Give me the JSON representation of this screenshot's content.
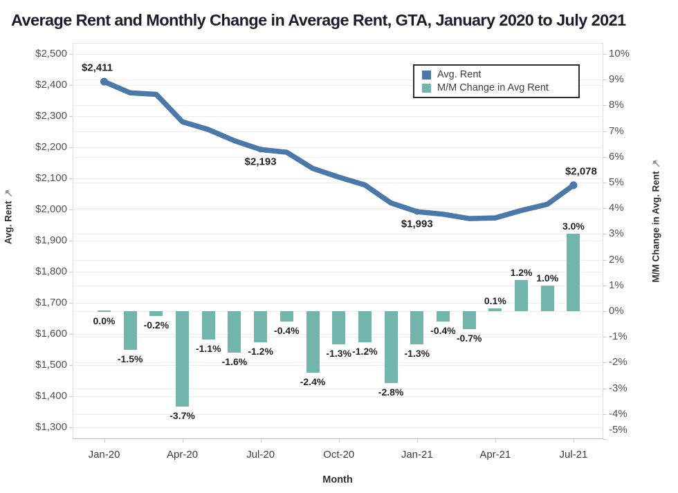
{
  "title": "Average Rent and Monthly Change in Average Rent, GTA, January 2020 to July 2021",
  "legend": {
    "items": [
      {
        "label": "Avg. Rent",
        "color": "#4a78a8"
      },
      {
        "label": "M/M Change in Avg Rent",
        "color": "#72b5ac"
      }
    ]
  },
  "colors": {
    "line": "#4a78a8",
    "bar": "#72b5ac",
    "gridline": "#ededed"
  },
  "chart_data": {
    "type": "line+bar dual-axis",
    "x": [
      "Jan-20",
      "Feb-20",
      "Mar-20",
      "Apr-20",
      "May-20",
      "Jun-20",
      "Jul-20",
      "Aug-20",
      "Sep-20",
      "Oct-20",
      "Nov-20",
      "Dec-20",
      "Jan-21",
      "Feb-21",
      "Mar-21",
      "Apr-21",
      "May-21",
      "Jun-21",
      "Jul-21"
    ],
    "series": [
      {
        "name": "Avg. Rent",
        "type": "line",
        "axis": "left",
        "color": "#4a78a8",
        "values": [
          2411,
          2375,
          2370,
          2282,
          2257,
          2221,
          2193,
          2184,
          2132,
          2104,
          2079,
          2021,
          1993,
          1985,
          1971,
          1973,
          1997,
          2017,
          2078
        ],
        "point_labels": [
          {
            "index": 0,
            "text": "$2,411",
            "position": "above"
          },
          {
            "index": 6,
            "text": "$2,193",
            "position": "below"
          },
          {
            "index": 12,
            "text": "$1,993",
            "position": "below"
          },
          {
            "index": 18,
            "text": "$2,078",
            "position": "above"
          }
        ]
      },
      {
        "name": "M/M Change in Avg Rent",
        "type": "bar",
        "axis": "right",
        "color": "#72b5ac",
        "values": [
          0.0,
          -1.5,
          -0.2,
          -3.7,
          -1.1,
          -1.6,
          -1.2,
          -0.4,
          -2.4,
          -1.3,
          -1.2,
          -2.8,
          -1.3,
          -0.4,
          -0.7,
          0.1,
          1.2,
          1.0,
          3.0
        ],
        "bar_labels": [
          "0.0%",
          "-1.5%",
          "-0.2%",
          "-3.7%",
          "-1.1%",
          "-1.6%",
          "-1.2%",
          "-0.4%",
          "-2.4%",
          "-1.3%",
          "-1.2%",
          "-2.8%",
          "-1.3%",
          "-0.4%",
          "-0.7%",
          "0.1%",
          "1.2%",
          "1.0%",
          "3.0%"
        ]
      }
    ],
    "left_axis": {
      "title": "Avg. Rent",
      "min": 1300,
      "max": 2500,
      "step": 100,
      "tick_labels": [
        "$2,500",
        "$2,400",
        "$2,300",
        "$2,200",
        "$2,100",
        "$2,000",
        "$1,900",
        "$1,800",
        "$1,700",
        "$1,600",
        "$1,500",
        "$1,400",
        "$1,300"
      ]
    },
    "right_axis": {
      "title": "M/M Change in Avg. Rent",
      "min": -5,
      "max": 10,
      "step": 1,
      "tick_labels": [
        "10%",
        "9%",
        "8%",
        "7%",
        "6%",
        "5%",
        "4%",
        "3%",
        "2%",
        "1%",
        "0%",
        "-1%",
        "-2%",
        "-3%",
        "-4%",
        "-5%"
      ]
    },
    "x_axis": {
      "title": "Month",
      "tick_labels": [
        "Jan-20",
        "Apr-20",
        "Jul-20",
        "Oct-20",
        "Jan-21",
        "Apr-21",
        "Jul-21"
      ],
      "tick_indices": [
        0,
        3,
        6,
        9,
        12,
        15,
        18
      ]
    },
    "grid": true,
    "legend_position": "top-right-inside"
  }
}
